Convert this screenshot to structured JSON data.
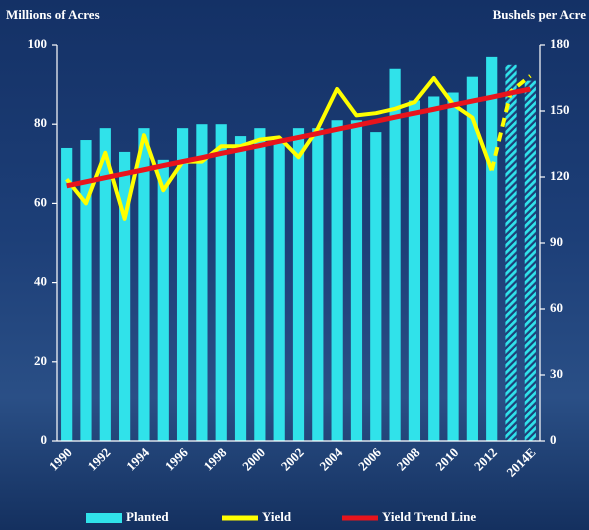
{
  "chart_data": {
    "type": "bar-line",
    "y_title": "Millions of Acres",
    "y2_title": "Bushels per Acre",
    "categories": [
      "1990",
      null,
      "1992",
      null,
      "1994",
      null,
      "1996",
      null,
      "1998",
      null,
      "2000",
      null,
      "2002",
      null,
      "2004",
      null,
      "2006",
      null,
      "2008",
      null,
      "2010",
      null,
      "2012",
      null,
      "2014E"
    ],
    "series": [
      {
        "name": "Planted",
        "type": "bar",
        "axis": "y",
        "color": "#30e2ea",
        "values": [
          74,
          76,
          79,
          73,
          79,
          71,
          79,
          80,
          80,
          77,
          79,
          76,
          79,
          79,
          81,
          81,
          78,
          94,
          86,
          87,
          88,
          92,
          97,
          95,
          91
        ]
      },
      {
        "name": "Yield",
        "type": "line",
        "axis": "y2",
        "color": "#ffff00",
        "values": [
          119,
          108,
          131,
          101,
          139,
          114,
          127,
          127,
          134,
          134,
          137,
          138,
          129,
          142,
          160,
          148,
          149,
          151,
          154,
          165,
          153,
          147,
          123,
          159,
          166
        ]
      },
      {
        "name": "Yield Trend Line",
        "type": "line",
        "axis": "y2",
        "color": "#e8141c",
        "values": [
          116.0,
          117.8,
          119.7,
          121.5,
          123.3,
          125.2,
          127.0,
          128.8,
          130.7,
          132.5,
          134.3,
          136.2,
          138.0,
          139.8,
          141.7,
          143.5,
          145.3,
          147.2,
          149.0,
          150.8,
          152.7,
          154.5,
          156.3,
          158.2,
          160.0
        ]
      }
    ],
    "projected_start": 23,
    "ylim": [
      0,
      100
    ],
    "yticks": [
      0,
      20,
      40,
      60,
      80,
      100
    ],
    "y2lim": [
      0,
      180
    ],
    "y2ticks": [
      0,
      30,
      60,
      90,
      120,
      150,
      180
    ],
    "legend": "bottom"
  }
}
